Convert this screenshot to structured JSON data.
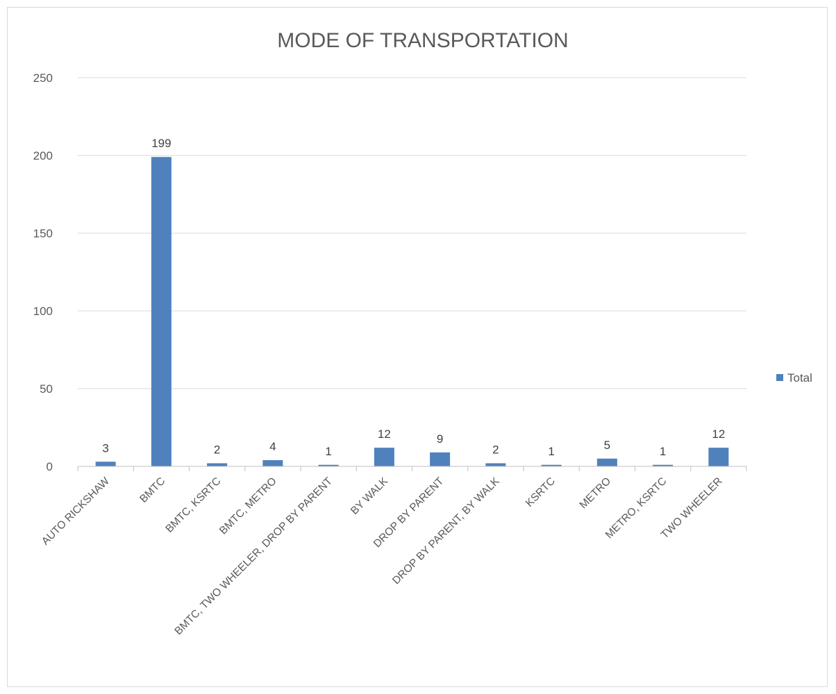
{
  "chart_data": {
    "type": "bar",
    "title": "MODE OF TRANSPORTATION",
    "xlabel": "",
    "ylabel": "",
    "categories": [
      "AUTO RICKSHAW",
      "BMTC",
      "BMTC, KSRTC",
      "BMTC, METRO",
      "BMTC, TWO WHEELER, DROP BY PARENT",
      "BY WALK",
      "DROP BY PARENT",
      "DROP BY PARENT, BY WALK",
      "KSRTC",
      "METRO",
      "METRO, KSRTC",
      "TWO WHEELER"
    ],
    "series": [
      {
        "name": "Total",
        "values": [
          3,
          199,
          2,
          4,
          1,
          12,
          9,
          2,
          1,
          5,
          1,
          12
        ],
        "color": "#4f81bd"
      }
    ],
    "data_labels": [
      "3",
      "199",
      "2",
      "4",
      "1",
      "12",
      "9",
      "2",
      "1",
      "5",
      "1",
      "12"
    ],
    "ylim": [
      0,
      250
    ],
    "yticks": [
      0,
      50,
      100,
      150,
      200,
      250
    ],
    "ytick_labels": [
      "0",
      "50",
      "100",
      "150",
      "200",
      "250"
    ],
    "grid": true,
    "legend": "right"
  }
}
